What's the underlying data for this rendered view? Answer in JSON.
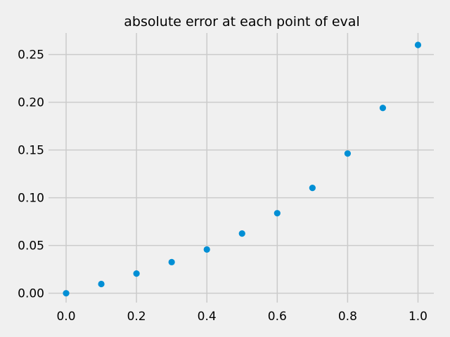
{
  "chart_data": {
    "type": "scatter",
    "title": "absolute error at each point of eval",
    "xlabel": "",
    "ylabel": "",
    "xlim": [
      -0.05,
      1.045
    ],
    "ylim": [
      -0.0098,
      0.2725
    ],
    "xticks": [
      0.0,
      0.2,
      0.4,
      0.6,
      0.8,
      1.0
    ],
    "xtick_labels": [
      "0.0",
      "0.2",
      "0.4",
      "0.6",
      "0.8",
      "1.0"
    ],
    "yticks": [
      0.0,
      0.05,
      0.1,
      0.15,
      0.2,
      0.25
    ],
    "ytick_labels": [
      "0.00",
      "0.05",
      "0.10",
      "0.15",
      "0.20",
      "0.25"
    ],
    "grid": true,
    "series": [
      {
        "color": "#008fd5",
        "x": [
          0.0,
          0.1,
          0.2,
          0.3,
          0.4,
          0.5,
          0.6,
          0.7,
          0.8,
          0.9,
          1.0
        ],
        "y": [
          0.0,
          0.0097,
          0.0206,
          0.0326,
          0.0458,
          0.0625,
          0.0838,
          0.1103,
          0.1463,
          0.194,
          0.26
        ]
      }
    ]
  },
  "colors": {
    "background": "#f0f0f0",
    "grid": "#cbcbcb",
    "marker": "#008fd5",
    "text": "#000000"
  }
}
